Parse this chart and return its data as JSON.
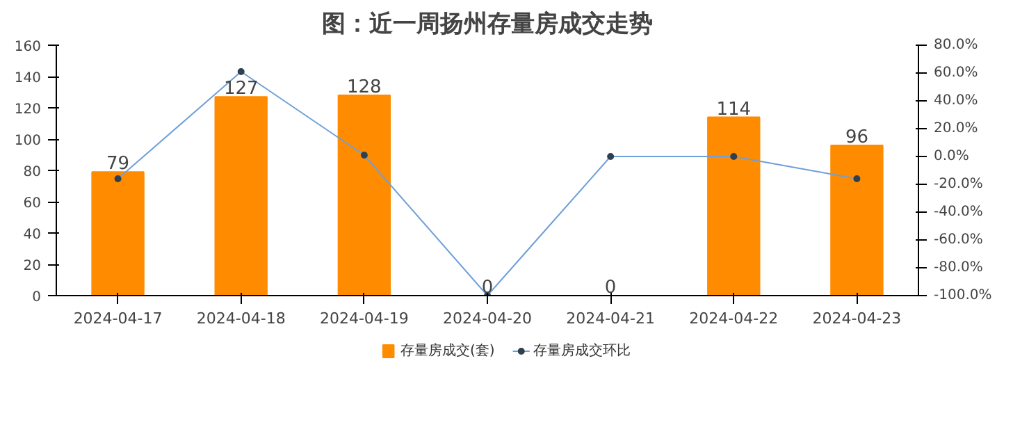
{
  "chart_data": {
    "type": "bar",
    "title": "图：近一周扬州存量房成交走势",
    "categories": [
      "2024-04-17",
      "2024-04-18",
      "2024-04-19",
      "2024-04-20",
      "2024-04-21",
      "2024-04-22",
      "2024-04-23"
    ],
    "series": [
      {
        "name": "存量房成交(套)",
        "color": "#ff8c00",
        "values": [
          79,
          127,
          128,
          0,
          0,
          114,
          96
        ],
        "data_labels": true
      },
      {
        "name": "存量房成交环比",
        "type": "line",
        "color": "#6f9fd8",
        "axis": "y2",
        "marker": "circle",
        "values": [
          -16,
          61,
          1,
          -100,
          0,
          0,
          -16
        ]
      }
    ],
    "ylim": [
      0,
      160
    ],
    "yticks": [
      0,
      20,
      40,
      60,
      80,
      100,
      120,
      140,
      160
    ],
    "y2lim": [
      -100,
      80
    ],
    "y2ticks": [
      {
        "value": -100,
        "label": "-100.0%"
      },
      {
        "value": -80,
        "label": "-80.0%"
      },
      {
        "value": -60,
        "label": "-60.0%"
      },
      {
        "value": -40,
        "label": "-40.0%"
      },
      {
        "value": -20,
        "label": "-20.0%"
      },
      {
        "value": 0,
        "label": "0.0%"
      },
      {
        "value": 20,
        "label": "20.0%"
      },
      {
        "value": 40,
        "label": "40.0%"
      },
      {
        "value": 60,
        "label": "60.0%"
      },
      {
        "value": 80,
        "label": "80.0%"
      }
    ],
    "legend": "bottom",
    "grid": false
  }
}
